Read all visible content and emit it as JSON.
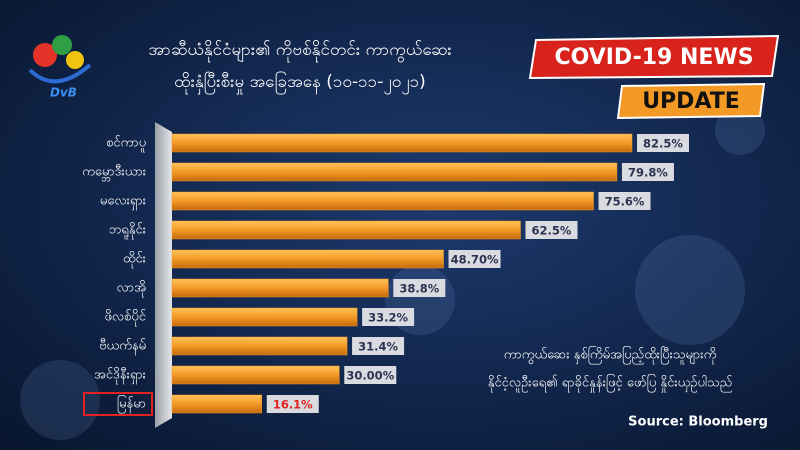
{
  "chart_data": {
    "type": "bar",
    "orientation": "horizontal",
    "logo": "DvB",
    "title": "အာဆီယံနိုင်ငံများ၏ ကိုဗစ်နိုင်တင်း ကာကွယ်ဆေး",
    "subtitle": "ထိုးနှံပြီးစီးမှု အခြေအနေ (၁၀-၁၁-၂၀၂၁)",
    "badge": "COVID-19 NEWS",
    "badge_sub": "UPDATE",
    "categories": [
      "စင်ကာပူ",
      "ကမ္ဘောဒီးယား",
      "မလေးရှား",
      "ဘရူနိုင်း",
      "ထိုင်း",
      "လာအို",
      "ဖိလစ်ပိုင်",
      "ဗီယက်နမ်",
      "အင်ဒိုနီးရှား",
      "မြန်မာ"
    ],
    "values": [
      82.5,
      79.8,
      75.6,
      62.5,
      48.7,
      38.8,
      33.2,
      31.4,
      30,
      16.1
    ],
    "value_labels": [
      "82.5%",
      "79.8%",
      "75.6%",
      "62.5%",
      "48.70%",
      "38.8%",
      "33.2%",
      "31.4%",
      "30.00%",
      "16.1%"
    ],
    "color": "#f39a26",
    "highlight_index": 9,
    "highlight_color": "#e3231f",
    "note": [
      "ကာကွယ်ဆေး နှစ်ကြိမ်အပြည့်ထိုးပြီးသူများကို",
      "နိုင်ငံ့လူဦးရေ၏ ရာခိုင်နှုန်းဖြင့် ဖော်ပြ နှိုင်းယှဉ်ပါသည်"
    ],
    "source": "Source: Bloomberg"
  }
}
